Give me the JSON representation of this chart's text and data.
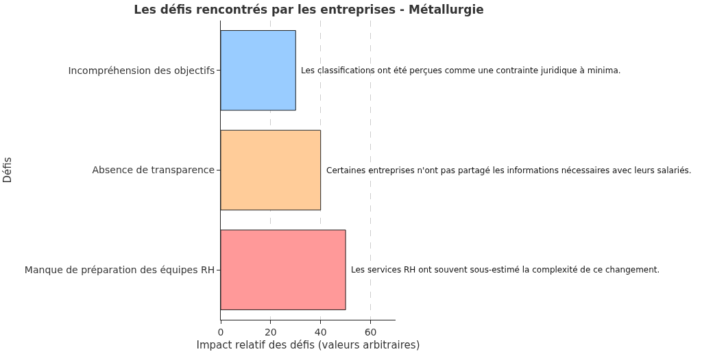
{
  "chart_data": {
    "type": "bar",
    "orientation": "horizontal",
    "title": "Les défis rencontrés par les entreprises - Métallurgie",
    "xlabel": "Impact relatif des défis (valeurs arbitraires)",
    "ylabel": "Défis",
    "categories": [
      "Incompréhension des objectifs",
      "Absence de transparence",
      "Manque de préparation des équipes RH"
    ],
    "values": [
      30,
      40,
      50
    ],
    "colors": [
      "#99ccff",
      "#ffcc99",
      "#ff9999"
    ],
    "xlim": [
      0,
      70
    ],
    "xticks": [
      0,
      20,
      40,
      60
    ],
    "grid": "x",
    "annotations": [
      {
        "text": "Les classifications ont été perçues comme une contrainte juridique à minima.",
        "x": 30,
        "y": "Incompréhension des objectifs"
      },
      {
        "text": "Certaines entreprises n'ont pas partagé les informations nécessaires avec leurs salariés.",
        "x": 40,
        "y": "Absence de transparence"
      },
      {
        "text": "Les services RH ont souvent sous-estimé la complexité de ce changement.",
        "x": 50,
        "y": "Manque de préparation des équipes RH"
      }
    ]
  }
}
